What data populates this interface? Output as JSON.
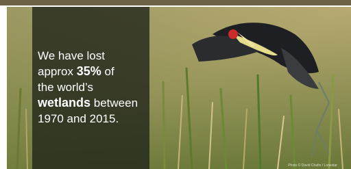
{
  "message": {
    "line1": "We have lost",
    "line2a": "approx",
    "line2b": "35%",
    "line2c": "of",
    "line3": "the world’s",
    "line4a": "wetlands",
    "line4b": "between",
    "line5": "1970 and 2015."
  },
  "credit": "Photo © David Chafin / Lonestar"
}
